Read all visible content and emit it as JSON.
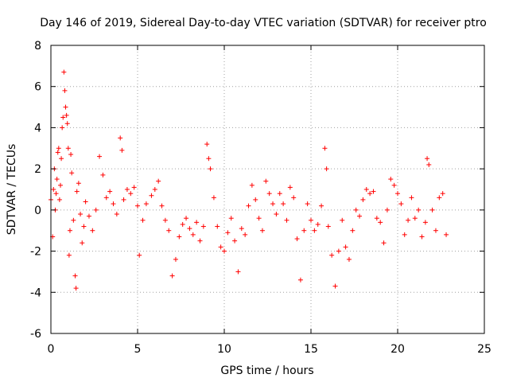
{
  "chart_data": {
    "type": "scatter",
    "title": "Day 146 of 2019, Sidereal Day-to-day VTEC variation (SDTVAR) for receiver ptro",
    "xlabel": "GPS time / hours",
    "ylabel": "SDTVAR / TECUs",
    "xlim": [
      0,
      25
    ],
    "ylim": [
      -6,
      8
    ],
    "xticks": [
      "0",
      "5",
      "10",
      "15",
      "20",
      "25"
    ],
    "yticks": [
      "-6",
      "-4",
      "-2",
      "0",
      "2",
      "4",
      "6",
      "8"
    ],
    "grid": true,
    "marker": "+",
    "color": "#ff0000",
    "series": [
      {
        "name": "ptro",
        "points": [
          [
            0.0,
            0.5
          ],
          [
            0.1,
            -1.3
          ],
          [
            0.15,
            1.0
          ],
          [
            0.2,
            2.0
          ],
          [
            0.25,
            0.0
          ],
          [
            0.3,
            0.8
          ],
          [
            0.35,
            1.5
          ],
          [
            0.4,
            2.8
          ],
          [
            0.45,
            3.0
          ],
          [
            0.5,
            0.5
          ],
          [
            0.55,
            1.2
          ],
          [
            0.6,
            2.5
          ],
          [
            0.65,
            4.0
          ],
          [
            0.7,
            4.5
          ],
          [
            0.75,
            6.7
          ],
          [
            0.8,
            5.8
          ],
          [
            0.85,
            5.0
          ],
          [
            0.9,
            4.6
          ],
          [
            0.95,
            4.2
          ],
          [
            1.0,
            3.0
          ],
          [
            1.05,
            -2.2
          ],
          [
            1.1,
            -1.0
          ],
          [
            1.15,
            2.7
          ],
          [
            1.2,
            1.8
          ],
          [
            1.3,
            -0.5
          ],
          [
            1.4,
            -3.2
          ],
          [
            1.45,
            -3.8
          ],
          [
            1.5,
            0.9
          ],
          [
            1.6,
            1.3
          ],
          [
            1.7,
            -0.2
          ],
          [
            1.8,
            -1.6
          ],
          [
            1.9,
            -0.8
          ],
          [
            2.0,
            0.4
          ],
          [
            2.2,
            -0.3
          ],
          [
            2.4,
            -1.0
          ],
          [
            2.6,
            0.0
          ],
          [
            2.8,
            2.6
          ],
          [
            3.0,
            1.7
          ],
          [
            3.2,
            0.6
          ],
          [
            3.4,
            0.9
          ],
          [
            3.6,
            0.3
          ],
          [
            3.8,
            -0.2
          ],
          [
            4.0,
            3.5
          ],
          [
            4.1,
            2.9
          ],
          [
            4.2,
            0.5
          ],
          [
            4.4,
            1.0
          ],
          [
            4.6,
            0.8
          ],
          [
            4.8,
            1.1
          ],
          [
            5.0,
            0.2
          ],
          [
            5.1,
            -2.2
          ],
          [
            5.3,
            -0.5
          ],
          [
            5.5,
            0.3
          ],
          [
            5.8,
            0.7
          ],
          [
            6.0,
            1.0
          ],
          [
            6.2,
            1.4
          ],
          [
            6.4,
            0.2
          ],
          [
            6.6,
            -0.5
          ],
          [
            6.8,
            -1.0
          ],
          [
            7.0,
            -3.2
          ],
          [
            7.2,
            -2.4
          ],
          [
            7.4,
            -1.3
          ],
          [
            7.6,
            -0.7
          ],
          [
            7.8,
            -0.4
          ],
          [
            8.0,
            -0.9
          ],
          [
            8.2,
            -1.2
          ],
          [
            8.4,
            -0.6
          ],
          [
            8.6,
            -1.5
          ],
          [
            8.8,
            -0.8
          ],
          [
            9.0,
            3.2
          ],
          [
            9.1,
            2.5
          ],
          [
            9.2,
            2.0
          ],
          [
            9.4,
            0.6
          ],
          [
            9.6,
            -0.8
          ],
          [
            9.8,
            -1.8
          ],
          [
            10.0,
            -2.0
          ],
          [
            10.2,
            -1.1
          ],
          [
            10.4,
            -0.4
          ],
          [
            10.6,
            -1.5
          ],
          [
            10.8,
            -3.0
          ],
          [
            11.0,
            -0.9
          ],
          [
            11.2,
            -1.2
          ],
          [
            11.4,
            0.2
          ],
          [
            11.6,
            1.2
          ],
          [
            11.8,
            0.5
          ],
          [
            12.0,
            -0.4
          ],
          [
            12.2,
            -1.0
          ],
          [
            12.4,
            1.4
          ],
          [
            12.6,
            0.8
          ],
          [
            12.8,
            0.3
          ],
          [
            13.0,
            -0.2
          ],
          [
            13.2,
            0.8
          ],
          [
            13.4,
            0.3
          ],
          [
            13.6,
            -0.5
          ],
          [
            13.8,
            1.1
          ],
          [
            14.0,
            0.6
          ],
          [
            14.2,
            -1.4
          ],
          [
            14.4,
            -3.4
          ],
          [
            14.6,
            -1.0
          ],
          [
            14.8,
            0.3
          ],
          [
            15.0,
            -0.5
          ],
          [
            15.2,
            -1.0
          ],
          [
            15.4,
            -0.7
          ],
          [
            15.6,
            0.2
          ],
          [
            15.8,
            3.0
          ],
          [
            15.9,
            2.0
          ],
          [
            16.0,
            -0.8
          ],
          [
            16.2,
            -2.2
          ],
          [
            16.4,
            -3.7
          ],
          [
            16.6,
            -2.0
          ],
          [
            16.8,
            -0.5
          ],
          [
            17.0,
            -1.8
          ],
          [
            17.2,
            -2.4
          ],
          [
            17.4,
            -1.0
          ],
          [
            17.6,
            0.0
          ],
          [
            17.8,
            -0.3
          ],
          [
            18.0,
            0.5
          ],
          [
            18.2,
            1.0
          ],
          [
            18.4,
            0.8
          ],
          [
            18.6,
            0.9
          ],
          [
            18.8,
            -0.4
          ],
          [
            19.0,
            -0.6
          ],
          [
            19.2,
            -1.6
          ],
          [
            19.4,
            0.0
          ],
          [
            19.6,
            1.5
          ],
          [
            19.8,
            1.2
          ],
          [
            20.0,
            0.8
          ],
          [
            20.2,
            0.3
          ],
          [
            20.4,
            -1.2
          ],
          [
            20.6,
            -0.5
          ],
          [
            20.8,
            0.6
          ],
          [
            21.0,
            -0.4
          ],
          [
            21.2,
            0.0
          ],
          [
            21.4,
            -1.3
          ],
          [
            21.6,
            -0.6
          ],
          [
            21.7,
            2.5
          ],
          [
            21.8,
            2.2
          ],
          [
            22.0,
            0.0
          ],
          [
            22.2,
            -1.0
          ],
          [
            22.4,
            0.6
          ],
          [
            22.6,
            0.8
          ],
          [
            22.8,
            -1.2
          ]
        ]
      }
    ]
  }
}
